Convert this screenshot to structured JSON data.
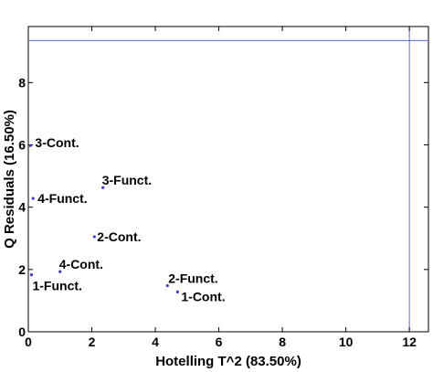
{
  "chart_data": {
    "type": "scatter",
    "xlabel": "Hotelling T^2 (83.50%)",
    "ylabel": "Q Residuals (16.50%)",
    "xlim": [
      0,
      12.6
    ],
    "ylim": [
      0,
      9.8
    ],
    "xticks": [
      0,
      2,
      4,
      6,
      8,
      10,
      12
    ],
    "yticks": [
      0,
      2,
      4,
      6,
      8
    ],
    "grid": false,
    "point_color": "#3a3ad0",
    "limit_color": "#5c6be0",
    "limits": {
      "x": 12.0,
      "y": 9.35
    },
    "points": [
      {
        "label": "3-Cont.",
        "x": 0.07,
        "y": 5.98
      },
      {
        "label": "3-Funct.",
        "x": 2.35,
        "y": 4.63
      },
      {
        "label": "4-Funct.",
        "x": 0.15,
        "y": 4.28
      },
      {
        "label": "2-Cont.",
        "x": 2.08,
        "y": 3.05
      },
      {
        "label": "4-Cont.",
        "x": 1.0,
        "y": 1.93
      },
      {
        "label": "1-Funct.",
        "x": 0.1,
        "y": 1.83
      },
      {
        "label": "2-Funct.",
        "x": 4.38,
        "y": 1.48
      },
      {
        "label": "1-Cont.",
        "x": 4.7,
        "y": 1.28
      }
    ]
  }
}
